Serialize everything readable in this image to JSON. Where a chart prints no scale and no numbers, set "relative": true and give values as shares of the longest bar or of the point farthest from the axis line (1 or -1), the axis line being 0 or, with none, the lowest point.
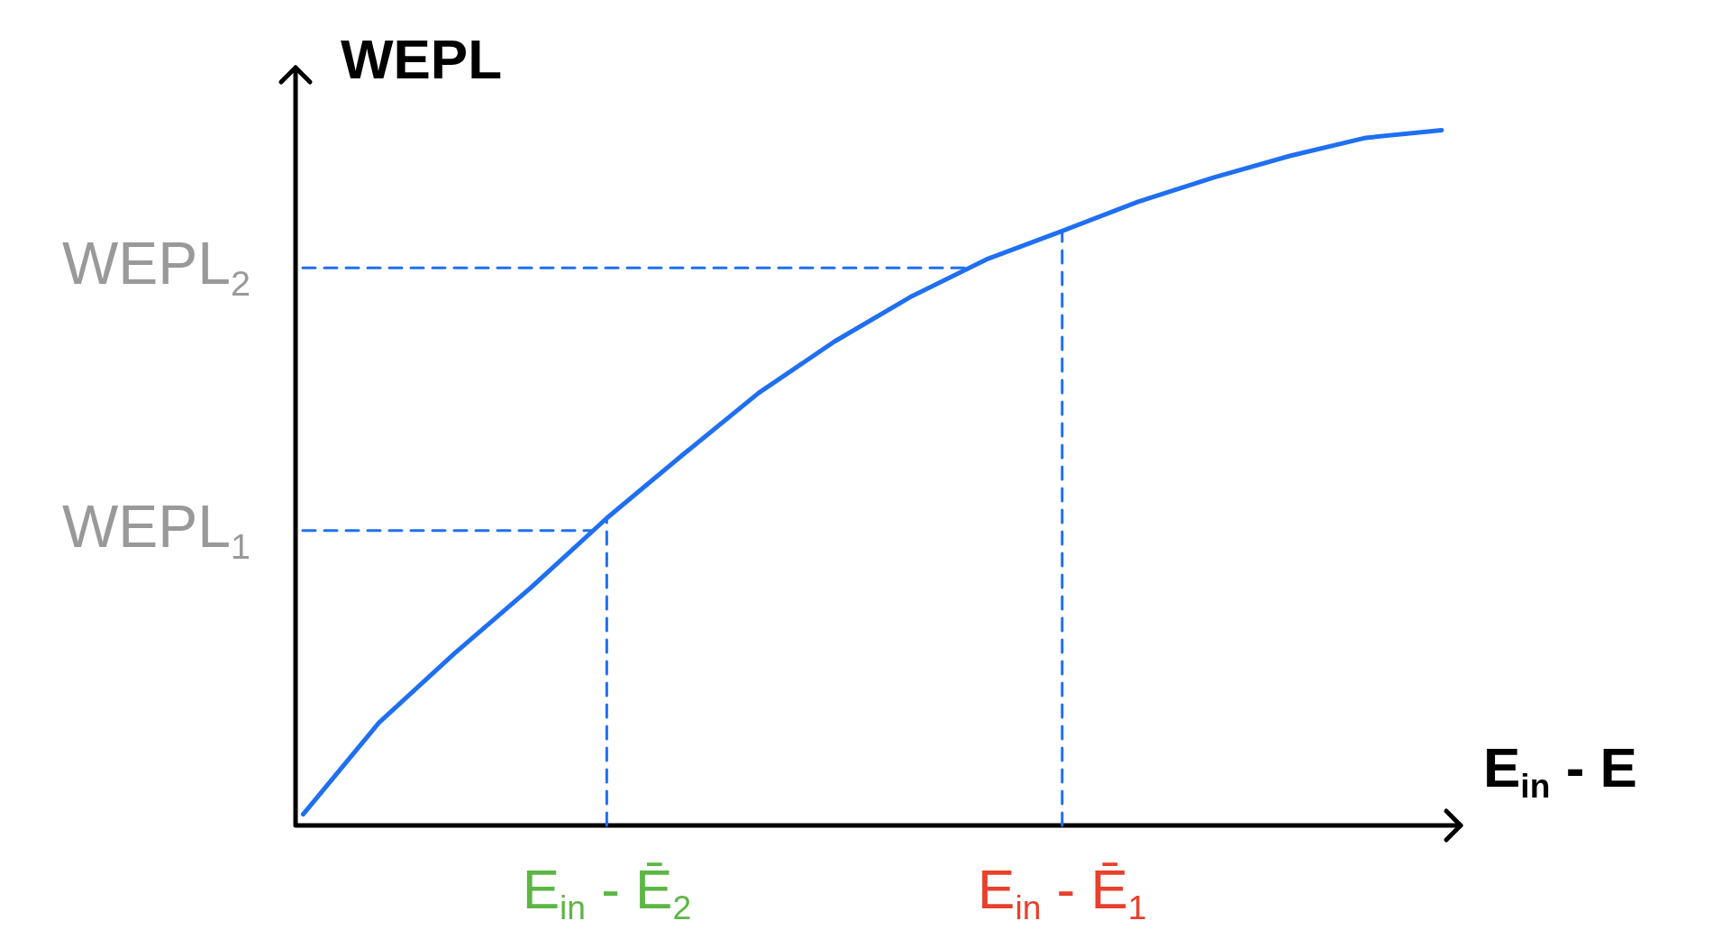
{
  "chart_data": {
    "type": "line",
    "relative": true,
    "xlabel": "E$_{in}$ - E",
    "ylabel": "WEPL",
    "categories": [
      null,
      null,
      null,
      null,
      "E$_{in}$ - Ē$_{2}$",
      null,
      null,
      null,
      null,
      null,
      "E$_{in}$ - Ē$_{1}$",
      null,
      null,
      null,
      null,
      null
    ],
    "series": [
      {
        "color": "#1f6ff2",
        "values": [
          0.016,
          0.148,
          0.248,
          0.342,
          0.442,
          0.533,
          0.622,
          0.696,
          0.76,
          0.814,
          0.855,
          0.897,
          0.932,
          0.963,
          0.989,
          1
        ]
      }
    ],
    "ref_lines": [
      {
        "axis": "y",
        "value": 0.424,
        "label": "WEPL$_{1}$",
        "color": "#1f6ff2",
        "line_style": "dashed"
      },
      {
        "axis": "y",
        "value": 0.802,
        "label": "WEPL$_{2}$",
        "color": "#1f6ff2",
        "line_style": "dashed"
      },
      {
        "axis": "x",
        "value": "E$_{in}$ - Ē$_{2}$",
        "color": "#1f6ff2",
        "line_style": "dashed"
      },
      {
        "axis": "x",
        "value": "E$_{in}$ - Ē$_{1}$",
        "color": "#1f6ff2",
        "line_style": "dashed"
      }
    ],
    "grid": false,
    "legend": false,
    "marker": "none",
    "line_style": "solid"
  }
}
